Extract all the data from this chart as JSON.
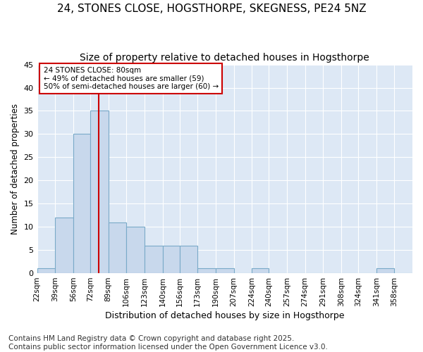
{
  "title1": "24, STONES CLOSE, HOGSTHORPE, SKEGNESS, PE24 5NZ",
  "title2": "Size of property relative to detached houses in Hogsthorpe",
  "xlabel": "Distribution of detached houses by size in Hogsthorpe",
  "ylabel": "Number of detached properties",
  "bin_labels": [
    "22sqm",
    "39sqm",
    "56sqm",
    "72sqm",
    "89sqm",
    "106sqm",
    "123sqm",
    "140sqm",
    "156sqm",
    "173sqm",
    "190sqm",
    "207sqm",
    "224sqm",
    "240sqm",
    "257sqm",
    "274sqm",
    "291sqm",
    "308sqm",
    "324sqm",
    "341sqm",
    "358sqm"
  ],
  "bin_edges": [
    22,
    39,
    56,
    72,
    89,
    106,
    123,
    140,
    156,
    173,
    190,
    207,
    224,
    240,
    257,
    274,
    291,
    308,
    324,
    341,
    358,
    375
  ],
  "counts": [
    1,
    12,
    30,
    35,
    11,
    10,
    6,
    6,
    6,
    1,
    1,
    0,
    1,
    0,
    0,
    0,
    0,
    0,
    0,
    1,
    0
  ],
  "bar_color": "#c8d8ec",
  "bar_edge_color": "#7aaac8",
  "vline_x": 80,
  "vline_color": "#cc0000",
  "annotation_text": "24 STONES CLOSE: 80sqm\n← 49% of detached houses are smaller (59)\n50% of semi-detached houses are larger (60) →",
  "annotation_box_color": "#ffffff",
  "annotation_box_edge": "#cc0000",
  "ylim": [
    0,
    45
  ],
  "yticks": [
    0,
    5,
    10,
    15,
    20,
    25,
    30,
    35,
    40,
    45
  ],
  "footnote": "Contains HM Land Registry data © Crown copyright and database right 2025.\nContains public sector information licensed under the Open Government Licence v3.0.",
  "bg_color": "#ffffff",
  "plot_bg_color": "#dde8f5",
  "grid_color": "#ffffff",
  "title_fontsize": 11,
  "subtitle_fontsize": 10,
  "footnote_fontsize": 7.5
}
